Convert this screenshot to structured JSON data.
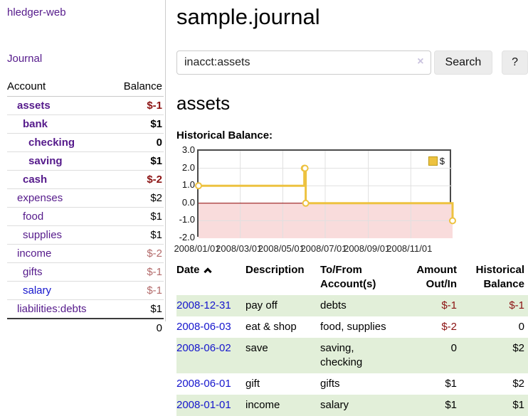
{
  "colors": {
    "link_purple": "#551a8b",
    "link_blue": "#1515cd",
    "negative_strong": "#8b1212",
    "negative_soft": "#b36a6a",
    "row_stripe_green": "#e2efd9",
    "series_gold": "#EDC240"
  },
  "sidebar": {
    "app_title": "hledger-web",
    "journal_link": "Journal",
    "accounts": {
      "headers": {
        "account": "Account",
        "balance": "Balance"
      },
      "rows": [
        {
          "name": "assets",
          "indent": 1,
          "bold": true,
          "balance": "$-1",
          "balance_tone": "negative-strong"
        },
        {
          "name": "bank",
          "indent": 2,
          "bold": true,
          "balance": "$1",
          "balance_tone": "normal"
        },
        {
          "name": "checking",
          "indent": 3,
          "bold": true,
          "balance": "0",
          "balance_tone": "normal"
        },
        {
          "name": "saving",
          "indent": 3,
          "bold": true,
          "balance": "$1",
          "balance_tone": "normal"
        },
        {
          "name": "cash",
          "indent": 2,
          "bold": true,
          "balance": "$-2",
          "balance_tone": "negative-strong"
        },
        {
          "name": "expenses",
          "indent": 1,
          "bold": false,
          "balance": "$2",
          "balance_tone": "normal"
        },
        {
          "name": "food",
          "indent": 2,
          "bold": false,
          "balance": "$1",
          "balance_tone": "normal"
        },
        {
          "name": "supplies",
          "indent": 2,
          "bold": false,
          "balance": "$1",
          "balance_tone": "normal"
        },
        {
          "name": "income",
          "indent": 1,
          "bold": false,
          "balance": "$-2",
          "balance_tone": "negative-soft"
        },
        {
          "name": "gifts",
          "indent": 2,
          "bold": false,
          "balance": "$-1",
          "balance_tone": "negative-soft"
        },
        {
          "name": "salary",
          "indent": 2,
          "bold": false,
          "balance": "$-1",
          "balance_tone": "negative-soft",
          "link_tone": "blue"
        },
        {
          "name": "liabilities:debts",
          "indent": 1,
          "bold": false,
          "balance": "$1",
          "balance_tone": "normal"
        }
      ],
      "total": "0"
    }
  },
  "main": {
    "title": "sample.journal",
    "search": {
      "value": "inacct:assets",
      "clear_icon": "×",
      "button_label": "Search",
      "help_label": "?"
    },
    "account_heading": "assets",
    "chart_label": "Historical Balance:"
  },
  "chart_data": {
    "type": "line",
    "title": "Historical Balance",
    "legend_label": "$",
    "legend_position": "top-right",
    "grid": true,
    "ylim": [
      -2,
      3
    ],
    "yticks": [
      "3.0",
      "2.0",
      "1.0",
      "0.0",
      "-1.0",
      "-2.0"
    ],
    "xticks": [
      {
        "label": "2008/01/01",
        "pos": 0.0
      },
      {
        "label": "2008/03/01",
        "pos": 0.1644
      },
      {
        "label": "2008/05/01",
        "pos": 0.3315
      },
      {
        "label": "2008/07/01",
        "pos": 0.4986
      },
      {
        "label": "2008/09/01",
        "pos": 0.6685
      },
      {
        "label": "2008/11/01",
        "pos": 0.8356
      }
    ],
    "series": [
      {
        "name": "$",
        "color": "#EDC240",
        "line_style": "step-after",
        "points": [
          {
            "date": "2008-01-01",
            "value": 1,
            "pos": 0.0
          },
          {
            "date": "2008-06-01",
            "value": 2,
            "pos": 0.4164
          },
          {
            "date": "2008-06-02",
            "value": 2,
            "pos": 0.4192
          },
          {
            "date": "2008-06-03",
            "value": 0,
            "pos": 0.4219
          },
          {
            "date": "2008-12-31",
            "value": -1,
            "pos": 1.0
          }
        ]
      }
    ],
    "negative_region_color": "#f9dcdc",
    "zero_line_color": "#8b0000",
    "gridline_color": "#e0e0e0"
  },
  "register": {
    "headers": {
      "date": "Date",
      "sort": "ascending",
      "description": "Description",
      "accounts": "To/From Account(s)",
      "amount": "Amount Out/In",
      "balance": "Historical Balance"
    },
    "rows": [
      {
        "date": "2008-12-31",
        "description": "pay off",
        "accounts": "debts",
        "amount": "$-1",
        "balance": "$-1"
      },
      {
        "date": "2008-06-03",
        "description": "eat & shop",
        "accounts": "food, supplies",
        "amount": "$-2",
        "balance": "0"
      },
      {
        "date": "2008-06-02",
        "description": "save",
        "accounts": "saving, checking",
        "amount": "0",
        "balance": "$2"
      },
      {
        "date": "2008-06-01",
        "description": "gift",
        "accounts": "gifts",
        "amount": "$1",
        "balance": "$2"
      },
      {
        "date": "2008-01-01",
        "description": "income",
        "accounts": "salary",
        "amount": "$1",
        "balance": "$1"
      }
    ]
  }
}
